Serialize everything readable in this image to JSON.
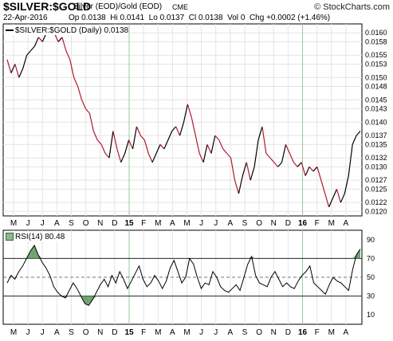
{
  "header": {
    "symbol": "$SILVER:$GOLD",
    "description": "Silver (EOD)/Gold (EOD)",
    "exchange": "CME",
    "brand": "© StockCharts.com",
    "date": "22-Apr-2016",
    "ohlc": [
      {
        "label": "Op",
        "value": "0.0138"
      },
      {
        "label": "Hi",
        "value": "0.0141"
      },
      {
        "label": "Lo",
        "value": "0.0137"
      },
      {
        "label": "Cl",
        "value": "0.0138"
      },
      {
        "label": "Vol",
        "value": "0"
      },
      {
        "label": "Chg",
        "value": "+0.0002 (+1.46%)"
      }
    ]
  },
  "legend": {
    "main": "$SILVER:$GOLD (Daily) 0.0138",
    "rsi": "RSI(14) 80.48"
  },
  "colors": {
    "up": "#000000",
    "down": "#b0172f",
    "grid": "#e4e4e4",
    "year_line": "#9cc79c",
    "rsi_fill": "#4e8a4e"
  },
  "chart_data": [
    {
      "type": "line",
      "title": "$SILVER:$GOLD (Daily) 0.0138",
      "x_tick_labels": [
        "M",
        "J",
        "J",
        "A",
        "S",
        "O",
        "N",
        "D",
        "15",
        "F",
        "M",
        "A",
        "M",
        "J",
        "J",
        "A",
        "S",
        "O",
        "N",
        "D",
        "16",
        "F",
        "M",
        "A"
      ],
      "y_tick_labels": [
        "0.0160",
        "0.0158",
        "0.0155",
        "0.0153",
        "0.0150",
        "0.0148",
        "0.0145",
        "0.0143",
        "0.0140",
        "0.0137",
        "0.0135",
        "0.0132",
        "0.0130",
        "0.0127",
        "0.0125",
        "0.0122",
        "0.0120"
      ],
      "ylim": [
        0.0119,
        0.0162
      ],
      "grid": true,
      "series": [
        {
          "name": "$SILVER:$GOLD",
          "x_start": "2014-05-01",
          "x_end": "2016-04-22",
          "values": [
            0.0154,
            0.0151,
            0.0153,
            0.015,
            0.0152,
            0.0155,
            0.0156,
            0.0157,
            0.0159,
            0.0158,
            0.016,
            0.0161,
            0.016,
            0.0158,
            0.0159,
            0.0156,
            0.0154,
            0.015,
            0.0148,
            0.0145,
            0.0143,
            0.0142,
            0.0138,
            0.0136,
            0.0135,
            0.0133,
            0.0132,
            0.0138,
            0.0134,
            0.0131,
            0.0133,
            0.0136,
            0.0134,
            0.0139,
            0.0137,
            0.0136,
            0.0133,
            0.0131,
            0.0133,
            0.0135,
            0.0134,
            0.0136,
            0.0138,
            0.0139,
            0.0137,
            0.014,
            0.0144,
            0.0141,
            0.0137,
            0.0133,
            0.0131,
            0.0135,
            0.0133,
            0.0137,
            0.0136,
            0.0134,
            0.0133,
            0.0132,
            0.0127,
            0.0124,
            0.0128,
            0.0131,
            0.0127,
            0.013,
            0.0136,
            0.0139,
            0.0133,
            0.0132,
            0.0131,
            0.013,
            0.0131,
            0.0135,
            0.0133,
            0.0131,
            0.013,
            0.0131,
            0.0128,
            0.013,
            0.0129,
            0.013,
            0.0127,
            0.0124,
            0.0121,
            0.0123,
            0.0125,
            0.0122,
            0.0124,
            0.0128,
            0.0135,
            0.0137,
            0.0138
          ]
        }
      ]
    },
    {
      "type": "line",
      "title": "RSI(14) 80.48",
      "x_tick_labels": [
        "M",
        "J",
        "J",
        "A",
        "S",
        "O",
        "N",
        "D",
        "15",
        "F",
        "M",
        "A",
        "M",
        "J",
        "J",
        "A",
        "S",
        "O",
        "N",
        "D",
        "16",
        "F",
        "M",
        "A"
      ],
      "y_tick_labels": [
        "90",
        "70",
        "50",
        "30",
        "10"
      ],
      "ylim": [
        0,
        100
      ],
      "reference_lines": [
        70,
        50,
        30
      ],
      "series": [
        {
          "name": "RSI(14)",
          "x_start": "2014-05-01",
          "x_end": "2016-04-22",
          "values": [
            44,
            52,
            48,
            56,
            62,
            70,
            78,
            84,
            74,
            66,
            60,
            52,
            40,
            34,
            30,
            28,
            36,
            44,
            38,
            30,
            22,
            20,
            26,
            34,
            42,
            48,
            40,
            52,
            44,
            56,
            48,
            38,
            46,
            54,
            62,
            48,
            40,
            44,
            52,
            46,
            38,
            46,
            60,
            68,
            56,
            44,
            50,
            70,
            64,
            50,
            38,
            44,
            42,
            56,
            50,
            40,
            36,
            34,
            38,
            42,
            36,
            50,
            64,
            72,
            52,
            44,
            42,
            40,
            50,
            56,
            48,
            40,
            44,
            40,
            38,
            46,
            52,
            56,
            62,
            44,
            40,
            36,
            32,
            42,
            50,
            46,
            44,
            40,
            36,
            58,
            74,
            80
          ]
        }
      ]
    }
  ]
}
